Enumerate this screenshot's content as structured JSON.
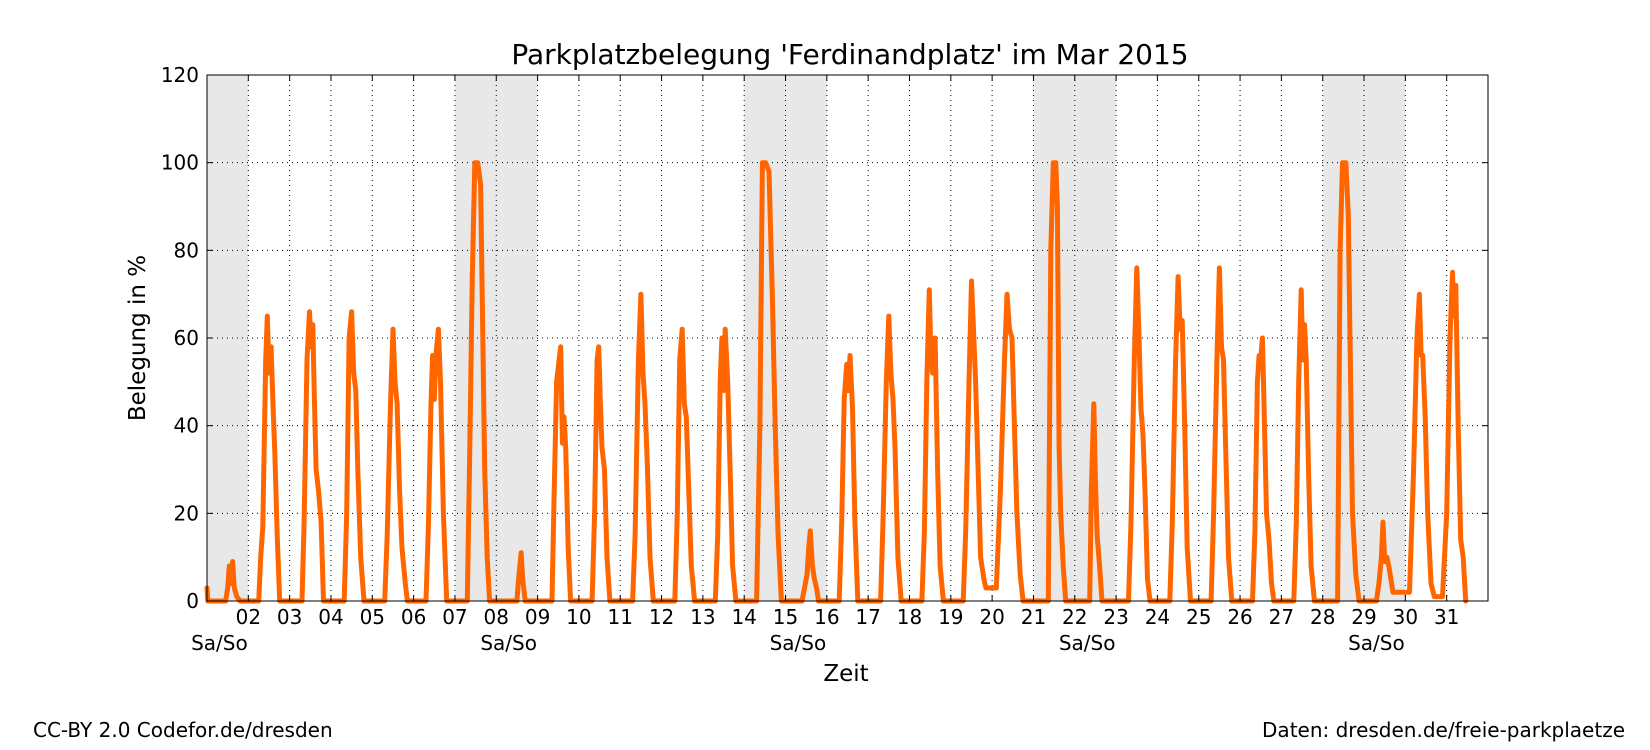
{
  "chart_data": {
    "type": "line",
    "title": "Parkplatzbelegung 'Ferdinandplatz' im Mar 2015",
    "xlabel": "Zeit",
    "ylabel": "Belegung in %",
    "ylim": [
      0,
      120
    ],
    "xlim": [
      1,
      32
    ],
    "yticks": [
      0,
      20,
      40,
      60,
      80,
      100,
      120
    ],
    "xticks": [
      {
        "day": 2,
        "label": "02"
      },
      {
        "day": 3,
        "label": "03"
      },
      {
        "day": 4,
        "label": "04"
      },
      {
        "day": 5,
        "label": "05"
      },
      {
        "day": 6,
        "label": "06"
      },
      {
        "day": 7,
        "label": "07"
      },
      {
        "day": 8,
        "label": "08"
      },
      {
        "day": 9,
        "label": "09"
      },
      {
        "day": 10,
        "label": "10"
      },
      {
        "day": 11,
        "label": "11"
      },
      {
        "day": 12,
        "label": "12"
      },
      {
        "day": 13,
        "label": "13"
      },
      {
        "day": 14,
        "label": "14"
      },
      {
        "day": 15,
        "label": "15"
      },
      {
        "day": 16,
        "label": "16"
      },
      {
        "day": 17,
        "label": "17"
      },
      {
        "day": 18,
        "label": "18"
      },
      {
        "day": 19,
        "label": "19"
      },
      {
        "day": 20,
        "label": "20"
      },
      {
        "day": 21,
        "label": "21"
      },
      {
        "day": 22,
        "label": "22"
      },
      {
        "day": 23,
        "label": "23"
      },
      {
        "day": 24,
        "label": "24"
      },
      {
        "day": 25,
        "label": "25"
      },
      {
        "day": 26,
        "label": "26"
      },
      {
        "day": 27,
        "label": "27"
      },
      {
        "day": 28,
        "label": "28"
      },
      {
        "day": 29,
        "label": "29"
      },
      {
        "day": 30,
        "label": "30"
      },
      {
        "day": 31,
        "label": "31"
      }
    ],
    "weekend_label": "Sa/So",
    "weekends": [
      {
        "start": 1,
        "end": 2,
        "label_day": 1.3
      },
      {
        "start": 7,
        "end": 9,
        "label_day": 8.3
      },
      {
        "start": 14,
        "end": 16,
        "label_day": 15.3
      },
      {
        "start": 21,
        "end": 23,
        "label_day": 22.3
      },
      {
        "start": 28,
        "end": 30,
        "label_day": 29.3
      }
    ],
    "grid": true,
    "line_color": "#ff6600",
    "weekend_color": "#e8e8e8",
    "series": [
      {
        "points": [
          [
            1.0,
            3
          ],
          [
            1.02,
            0
          ],
          [
            1.45,
            0
          ],
          [
            1.5,
            3
          ],
          [
            1.54,
            8
          ],
          [
            1.58,
            4
          ],
          [
            1.62,
            9
          ],
          [
            1.66,
            3
          ],
          [
            1.72,
            1
          ],
          [
            1.8,
            0
          ],
          [
            2.25,
            0
          ],
          [
            2.3,
            10
          ],
          [
            2.35,
            17
          ],
          [
            2.42,
            55
          ],
          [
            2.46,
            65
          ],
          [
            2.5,
            52
          ],
          [
            2.55,
            58
          ],
          [
            2.6,
            44
          ],
          [
            2.64,
            34
          ],
          [
            2.7,
            15
          ],
          [
            2.76,
            0
          ],
          [
            3.3,
            0
          ],
          [
            3.35,
            18
          ],
          [
            3.42,
            55
          ],
          [
            3.48,
            66
          ],
          [
            3.52,
            58
          ],
          [
            3.56,
            63
          ],
          [
            3.6,
            46
          ],
          [
            3.64,
            30
          ],
          [
            3.7,
            25
          ],
          [
            3.76,
            18
          ],
          [
            3.82,
            0
          ],
          [
            4.32,
            0
          ],
          [
            4.38,
            20
          ],
          [
            4.44,
            60
          ],
          [
            4.5,
            66
          ],
          [
            4.55,
            52
          ],
          [
            4.6,
            48
          ],
          [
            4.65,
            30
          ],
          [
            4.72,
            10
          ],
          [
            4.8,
            0
          ],
          [
            5.3,
            0
          ],
          [
            5.36,
            15
          ],
          [
            5.44,
            45
          ],
          [
            5.5,
            62
          ],
          [
            5.55,
            50
          ],
          [
            5.6,
            45
          ],
          [
            5.66,
            25
          ],
          [
            5.72,
            12
          ],
          [
            5.8,
            4
          ],
          [
            5.85,
            0
          ],
          [
            6.3,
            0
          ],
          [
            6.36,
            18
          ],
          [
            6.42,
            45
          ],
          [
            6.46,
            56
          ],
          [
            6.5,
            46
          ],
          [
            6.54,
            56
          ],
          [
            6.6,
            62
          ],
          [
            6.65,
            50
          ],
          [
            6.72,
            20
          ],
          [
            6.8,
            0
          ],
          [
            7.3,
            0
          ],
          [
            7.36,
            35
          ],
          [
            7.42,
            74
          ],
          [
            7.48,
            100
          ],
          [
            7.55,
            100
          ],
          [
            7.62,
            95
          ],
          [
            7.66,
            70
          ],
          [
            7.72,
            30
          ],
          [
            7.78,
            10
          ],
          [
            7.84,
            0
          ],
          [
            8.5,
            0
          ],
          [
            8.54,
            5
          ],
          [
            8.6,
            11
          ],
          [
            8.64,
            5
          ],
          [
            8.7,
            0
          ],
          [
            9.35,
            0
          ],
          [
            9.4,
            24
          ],
          [
            9.46,
            50
          ],
          [
            9.52,
            55
          ],
          [
            9.56,
            58
          ],
          [
            9.6,
            36
          ],
          [
            9.64,
            42
          ],
          [
            9.68,
            35
          ],
          [
            9.74,
            12
          ],
          [
            9.8,
            0
          ],
          [
            10.32,
            0
          ],
          [
            10.38,
            20
          ],
          [
            10.44,
            55
          ],
          [
            10.48,
            58
          ],
          [
            10.52,
            45
          ],
          [
            10.56,
            35
          ],
          [
            10.62,
            30
          ],
          [
            10.68,
            10
          ],
          [
            10.75,
            0
          ],
          [
            11.3,
            0
          ],
          [
            11.36,
            15
          ],
          [
            11.44,
            55
          ],
          [
            11.5,
            70
          ],
          [
            11.55,
            52
          ],
          [
            11.6,
            45
          ],
          [
            11.66,
            30
          ],
          [
            11.72,
            10
          ],
          [
            11.8,
            0
          ],
          [
            12.32,
            0
          ],
          [
            12.38,
            20
          ],
          [
            12.44,
            55
          ],
          [
            12.5,
            62
          ],
          [
            12.55,
            45
          ],
          [
            12.6,
            42
          ],
          [
            12.66,
            25
          ],
          [
            12.72,
            8
          ],
          [
            12.8,
            0
          ],
          [
            13.3,
            0
          ],
          [
            13.36,
            15
          ],
          [
            13.42,
            50
          ],
          [
            13.46,
            60
          ],
          [
            13.5,
            48
          ],
          [
            13.54,
            62
          ],
          [
            13.6,
            50
          ],
          [
            13.66,
            30
          ],
          [
            13.72,
            8
          ],
          [
            13.8,
            0
          ],
          [
            14.3,
            0
          ],
          [
            14.38,
            40
          ],
          [
            14.44,
            100
          ],
          [
            14.52,
            100
          ],
          [
            14.6,
            98
          ],
          [
            14.68,
            70
          ],
          [
            14.75,
            40
          ],
          [
            14.82,
            15
          ],
          [
            14.9,
            0
          ],
          [
            15.4,
            0
          ],
          [
            15.46,
            3
          ],
          [
            15.52,
            6
          ],
          [
            15.56,
            12
          ],
          [
            15.6,
            16
          ],
          [
            15.65,
            8
          ],
          [
            15.7,
            5
          ],
          [
            15.75,
            3
          ],
          [
            15.8,
            0
          ],
          [
            16.3,
            0
          ],
          [
            16.36,
            18
          ],
          [
            16.42,
            46
          ],
          [
            16.48,
            54
          ],
          [
            16.52,
            48
          ],
          [
            16.56,
            56
          ],
          [
            16.62,
            44
          ],
          [
            16.68,
            18
          ],
          [
            16.75,
            0
          ],
          [
            17.3,
            0
          ],
          [
            17.36,
            18
          ],
          [
            17.44,
            50
          ],
          [
            17.5,
            65
          ],
          [
            17.55,
            52
          ],
          [
            17.6,
            46
          ],
          [
            17.65,
            35
          ],
          [
            17.72,
            10
          ],
          [
            17.8,
            0
          ],
          [
            18.3,
            0
          ],
          [
            18.36,
            16
          ],
          [
            18.42,
            50
          ],
          [
            18.48,
            71
          ],
          [
            18.52,
            55
          ],
          [
            18.56,
            52
          ],
          [
            18.62,
            60
          ],
          [
            18.68,
            30
          ],
          [
            18.74,
            8
          ],
          [
            18.82,
            0
          ],
          [
            19.3,
            0
          ],
          [
            19.36,
            16
          ],
          [
            19.44,
            50
          ],
          [
            19.5,
            73
          ],
          [
            19.55,
            62
          ],
          [
            19.6,
            50
          ],
          [
            19.66,
            30
          ],
          [
            19.72,
            10
          ],
          [
            19.8,
            5
          ],
          [
            19.85,
            3
          ],
          [
            20.1,
            3
          ],
          [
            20.2,
            25
          ],
          [
            20.3,
            55
          ],
          [
            20.36,
            70
          ],
          [
            20.42,
            62
          ],
          [
            20.48,
            60
          ],
          [
            20.54,
            40
          ],
          [
            20.6,
            20
          ],
          [
            20.68,
            6
          ],
          [
            20.75,
            0
          ],
          [
            21.36,
            0
          ],
          [
            21.42,
            80
          ],
          [
            21.48,
            100
          ],
          [
            21.54,
            100
          ],
          [
            21.58,
            90
          ],
          [
            21.62,
            35
          ],
          [
            21.66,
            20
          ],
          [
            21.72,
            8
          ],
          [
            21.78,
            0
          ],
          [
            22.36,
            0
          ],
          [
            22.4,
            25
          ],
          [
            22.46,
            45
          ],
          [
            22.5,
            28
          ],
          [
            22.54,
            15
          ],
          [
            22.6,
            8
          ],
          [
            22.66,
            0
          ],
          [
            23.3,
            0
          ],
          [
            23.36,
            18
          ],
          [
            23.44,
            55
          ],
          [
            23.5,
            76
          ],
          [
            23.55,
            62
          ],
          [
            23.6,
            44
          ],
          [
            23.65,
            38
          ],
          [
            23.7,
            25
          ],
          [
            23.76,
            5
          ],
          [
            23.82,
            0
          ],
          [
            24.3,
            0
          ],
          [
            24.36,
            18
          ],
          [
            24.44,
            55
          ],
          [
            24.5,
            74
          ],
          [
            24.55,
            62
          ],
          [
            24.6,
            64
          ],
          [
            24.66,
            40
          ],
          [
            24.72,
            12
          ],
          [
            24.8,
            0
          ],
          [
            25.3,
            0
          ],
          [
            25.36,
            20
          ],
          [
            25.44,
            55
          ],
          [
            25.5,
            76
          ],
          [
            25.55,
            58
          ],
          [
            25.6,
            55
          ],
          [
            25.66,
            32
          ],
          [
            25.72,
            10
          ],
          [
            25.8,
            0
          ],
          [
            26.3,
            0
          ],
          [
            26.36,
            16
          ],
          [
            26.42,
            50
          ],
          [
            26.46,
            56
          ],
          [
            26.5,
            55
          ],
          [
            26.54,
            60
          ],
          [
            26.58,
            45
          ],
          [
            26.64,
            20
          ],
          [
            26.7,
            14
          ],
          [
            26.76,
            4
          ],
          [
            26.82,
            0
          ],
          [
            27.3,
            0
          ],
          [
            27.36,
            18
          ],
          [
            27.42,
            50
          ],
          [
            27.48,
            71
          ],
          [
            27.52,
            55
          ],
          [
            27.56,
            63
          ],
          [
            27.6,
            55
          ],
          [
            27.66,
            28
          ],
          [
            27.72,
            8
          ],
          [
            27.8,
            0
          ],
          [
            28.36,
            0
          ],
          [
            28.42,
            80
          ],
          [
            28.48,
            100
          ],
          [
            28.56,
            100
          ],
          [
            28.62,
            88
          ],
          [
            28.66,
            60
          ],
          [
            28.72,
            20
          ],
          [
            28.8,
            6
          ],
          [
            28.88,
            0
          ],
          [
            29.3,
            0
          ],
          [
            29.36,
            4
          ],
          [
            29.42,
            10
          ],
          [
            29.46,
            18
          ],
          [
            29.5,
            9
          ],
          [
            29.55,
            10
          ],
          [
            29.6,
            8
          ],
          [
            29.7,
            2
          ],
          [
            30.1,
            2
          ],
          [
            30.2,
            30
          ],
          [
            30.28,
            60
          ],
          [
            30.34,
            70
          ],
          [
            30.38,
            56
          ],
          [
            30.42,
            56
          ],
          [
            30.48,
            42
          ],
          [
            30.54,
            20
          ],
          [
            30.62,
            4
          ],
          [
            30.7,
            1
          ],
          [
            30.9,
            1
          ],
          [
            31.0,
            20
          ],
          [
            31.08,
            60
          ],
          [
            31.14,
            75
          ],
          [
            31.18,
            65
          ],
          [
            31.22,
            72
          ],
          [
            31.28,
            40
          ],
          [
            31.34,
            14
          ],
          [
            31.4,
            10
          ],
          [
            31.46,
            0
          ]
        ]
      }
    ]
  },
  "footer": {
    "left": "CC-BY 2.0 Codefor.de/dresden",
    "right": "Daten: dresden.de/freie-parkplaetze"
  }
}
